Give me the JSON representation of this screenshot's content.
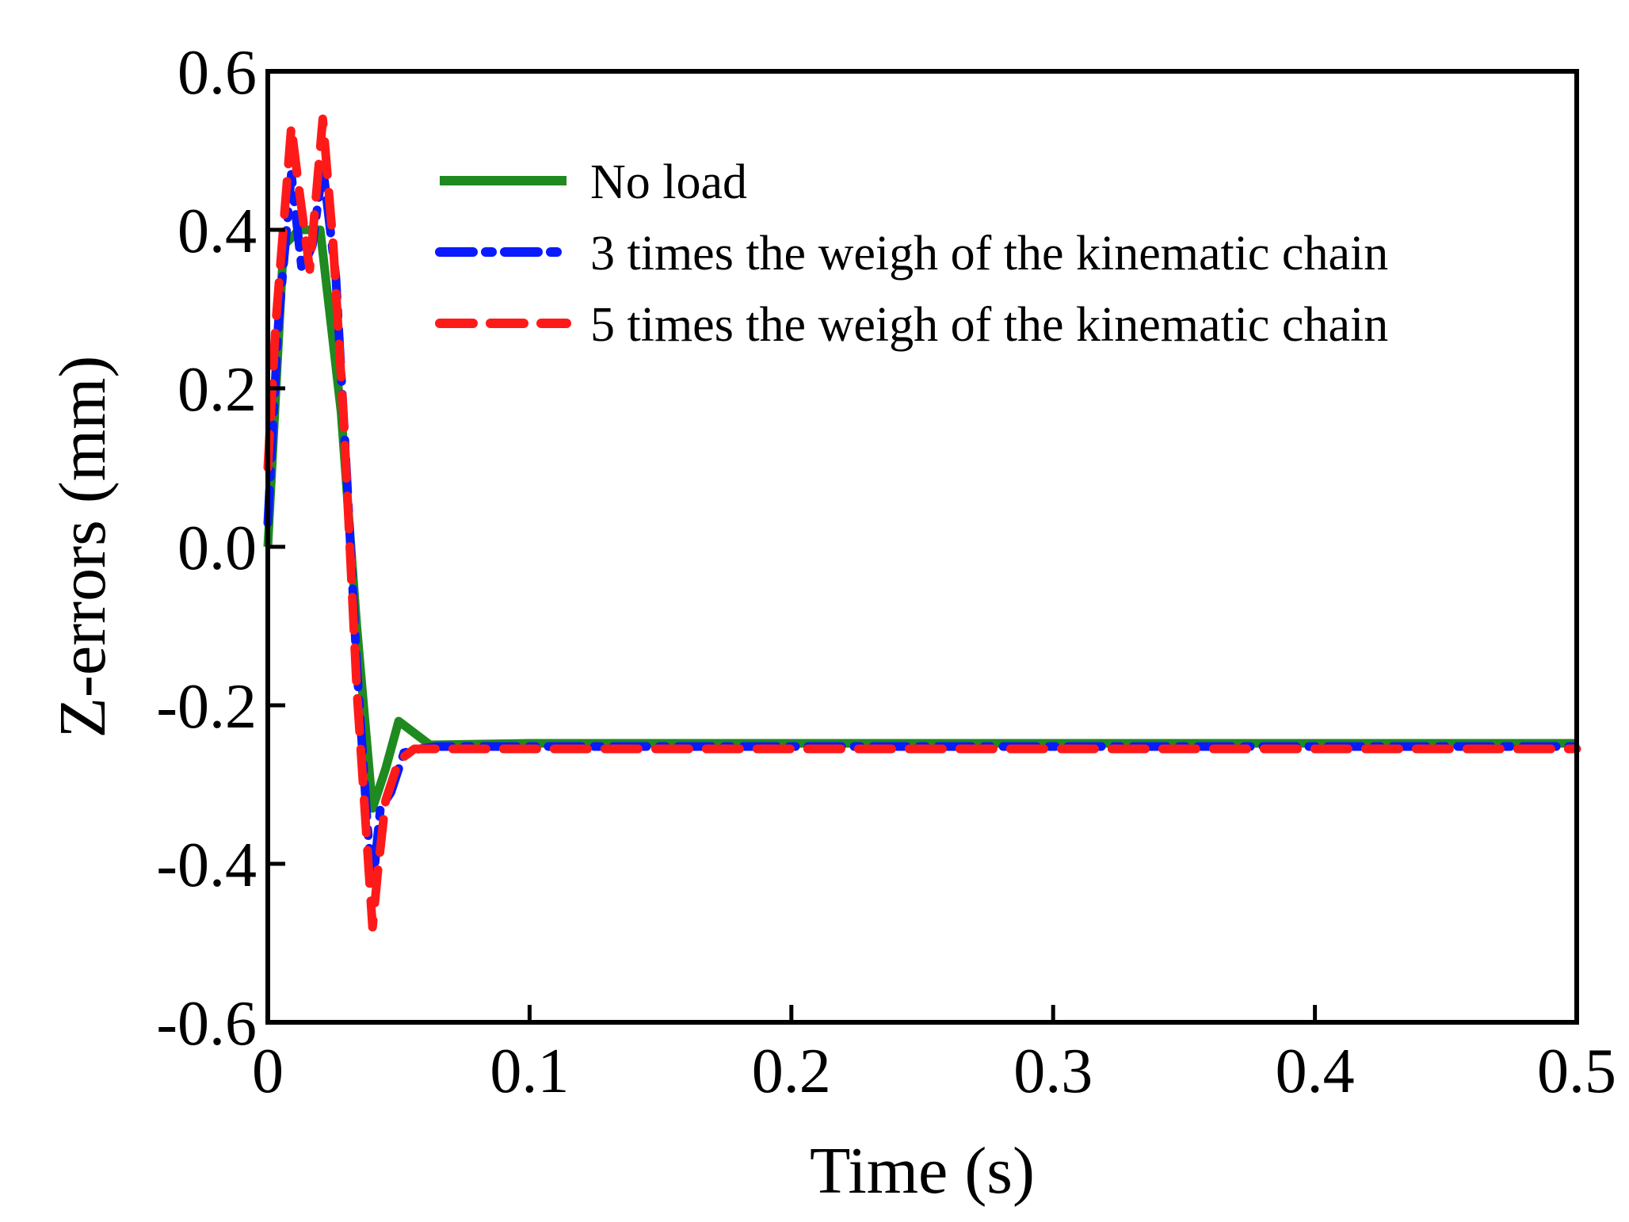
{
  "chart_data": {
    "type": "line",
    "title": "",
    "xlabel": "Time (s)",
    "ylabel": "Z-errors (mm)",
    "xlim": [
      0,
      0.5
    ],
    "ylim": [
      -0.6,
      0.6
    ],
    "grid": false,
    "legend_position": "top-right",
    "x_ticks": [
      0,
      0.1,
      0.2,
      0.3,
      0.4,
      0.5
    ],
    "x_tick_labels": [
      "0",
      "0.1",
      "0.2",
      "0.3",
      "0.4",
      "0.5"
    ],
    "y_ticks": [
      0.6,
      0.4,
      0.2,
      0.0,
      -0.2,
      -0.4,
      -0.6
    ],
    "y_tick_labels": [
      "0.6",
      "0.4",
      "0.2",
      "0.0",
      "-0.2",
      "-0.4",
      "-0.6"
    ],
    "series": [
      {
        "name": "No load",
        "color": "#1f8a1f",
        "style": "solid",
        "x": [
          0,
          0.006,
          0.012,
          0.02,
          0.028,
          0.034,
          0.04,
          0.045,
          0.05,
          0.056,
          0.062,
          0.1,
          0.2,
          0.3,
          0.4,
          0.5
        ],
        "y": [
          0.0,
          0.38,
          0.4,
          0.4,
          0.17,
          -0.1,
          -0.33,
          -0.28,
          -0.22,
          -0.235,
          -0.25,
          -0.248,
          -0.248,
          -0.248,
          -0.248,
          -0.248
        ]
      },
      {
        "name": "3 times the weigh of the kinematic chain",
        "color": "#0a1aff",
        "style": "dashdot",
        "x": [
          0,
          0.004,
          0.009,
          0.013,
          0.017,
          0.021,
          0.026,
          0.03,
          0.034,
          0.038,
          0.04,
          0.043,
          0.047,
          0.052,
          0.058,
          0.065,
          0.1,
          0.2,
          0.3,
          0.4,
          0.5
        ],
        "y": [
          0.03,
          0.28,
          0.47,
          0.35,
          0.38,
          0.48,
          0.34,
          0.1,
          -0.15,
          -0.35,
          -0.43,
          -0.33,
          -0.31,
          -0.26,
          -0.255,
          -0.252,
          -0.252,
          -0.252,
          -0.252,
          -0.252,
          -0.252
        ]
      },
      {
        "name": "5 times the weigh of the kinematic chain",
        "color": "#ff1a1a",
        "style": "dashed",
        "x": [
          0,
          0.003,
          0.009,
          0.012,
          0.016,
          0.021,
          0.025,
          0.029,
          0.034,
          0.038,
          0.04,
          0.042,
          0.045,
          0.05,
          0.056,
          0.062,
          0.1,
          0.2,
          0.3,
          0.4,
          0.5
        ],
        "y": [
          0.1,
          0.28,
          0.53,
          0.45,
          0.35,
          0.54,
          0.38,
          0.16,
          -0.18,
          -0.38,
          -0.48,
          -0.41,
          -0.32,
          -0.27,
          -0.255,
          -0.255,
          -0.255,
          -0.255,
          -0.255,
          -0.255,
          -0.255
        ]
      }
    ]
  }
}
